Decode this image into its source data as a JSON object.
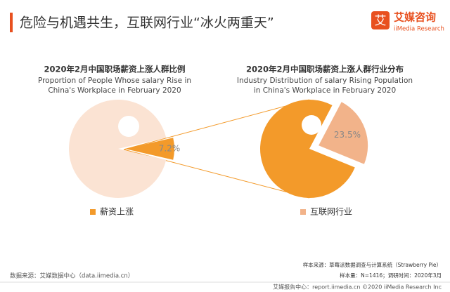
{
  "header": {
    "title": "危险与机遇共生，互联网行业“冰火两重天”",
    "logo_icon": "艾",
    "logo_name": "艾媒咨询",
    "logo_sub": "iiMedia Research"
  },
  "chart_data": [
    {
      "type": "pie",
      "title": "2020年2月中国职场薪资上涨人群比例",
      "subtitle": "Proportion of People Whose salary Rise in China's Workplace in February 2020",
      "categories": [
        "薪资上涨",
        null
      ],
      "values": [
        7.2,
        92.8
      ],
      "value_labels": [
        "7.2%",
        null
      ],
      "colors": [
        "#f39a2a",
        "#fbe3d3"
      ]
    },
    {
      "type": "pie",
      "title": "2020年2月中国职场薪资上涨人群行业分布",
      "subtitle": "Industry Distribution of salary Rising Population in China's Workplace in February 2020",
      "categories": [
        "互联网行业",
        null
      ],
      "values": [
        23.5,
        76.5
      ],
      "value_labels": [
        "23.5%",
        null
      ],
      "colors": [
        "#f2b38a",
        "#f39a2a"
      ]
    }
  ],
  "footer": {
    "sample_source": "样本来源：草莓派数据调查与计算系统（Strawberry Pie）",
    "sample_size": "样本量：N=1416；调研时间：2020年3月",
    "data_source": "数据来源：艾媒数据中心（data.iimedia.cn）",
    "report": "艾媒报告中心：report.iimedia.cn ©2020 iiMedia Research Inc"
  }
}
